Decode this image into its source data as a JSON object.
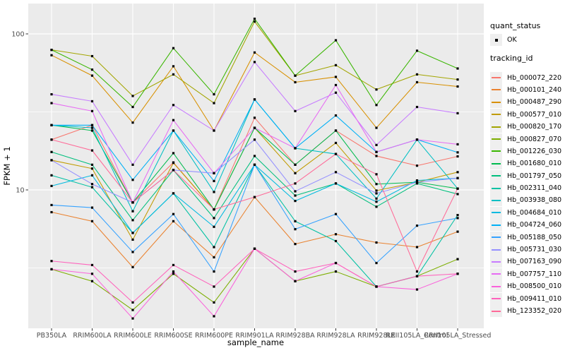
{
  "figure": {
    "background": "#FFFFFF",
    "panel_bg": "#EBEBEB",
    "grid_color": "#FFFFFF",
    "tick_color": "#333333",
    "tick_label_color": "#4D4D4D",
    "point_color": "#000000"
  },
  "legend": {
    "quant_status": {
      "title": "quant_status",
      "items": [
        {
          "label": "OK",
          "symbol": "black-point"
        }
      ]
    },
    "tracking_id": {
      "title": "tracking_id"
    }
  },
  "chart_data": {
    "type": "line",
    "title": "",
    "xlabel": "sample_name",
    "ylabel": "FPKM + 1",
    "y_scale": "log10",
    "y_ticks": [
      100,
      10
    ],
    "y_minor_gridlines": [
      31.62,
      3.162
    ],
    "ylim": [
      1.35,
      160
    ],
    "grid": true,
    "legend_position": "right",
    "marker": "small black point (quant_status = OK)",
    "categories": [
      "PB350LA",
      "RRIM600LA",
      "RRIM600LE",
      "RRIM600SE",
      "RRIM600PE",
      "RRIM901LA",
      "RRIM928BA",
      "RRIM928LA",
      "RRIM928LE",
      "RRII105LA_Control",
      "RRII105LA_Stressed"
    ],
    "series": [
      {
        "name": "Hb_000072_220",
        "color": "#F8766D",
        "values": [
          21,
          26,
          8.3,
          15,
          7.5,
          29,
          14.5,
          24,
          16.5,
          14.3,
          16.4
        ]
      },
      {
        "name": "Hb_000101_240",
        "color": "#EA8331",
        "values": [
          7.2,
          6.3,
          3.2,
          6.3,
          3.7,
          9.0,
          4.5,
          5.2,
          4.6,
          4.3,
          5.4
        ]
      },
      {
        "name": "Hb_000487_290",
        "color": "#D89000",
        "values": [
          73,
          54,
          27,
          62,
          24,
          76,
          49,
          53,
          25,
          49,
          46
        ]
      },
      {
        "name": "Hb_000577_010",
        "color": "#C09B00",
        "values": [
          15.5,
          13.7,
          4.8,
          14.9,
          7.5,
          25,
          12.8,
          20,
          9.9,
          11.2,
          13
        ]
      },
      {
        "name": "Hb_000820_170",
        "color": "#A3A500",
        "values": [
          79,
          72,
          40,
          55,
          36,
          120,
          54,
          63,
          44,
          55,
          51
        ]
      },
      {
        "name": "Hb_000827_070",
        "color": "#7CAE00",
        "values": [
          3.1,
          2.6,
          1.7,
          2.9,
          1.9,
          4.2,
          2.6,
          3.0,
          2.4,
          2.8,
          3.6
        ]
      },
      {
        "name": "Hb_001226_030",
        "color": "#39B600",
        "values": [
          79,
          59,
          34,
          81,
          41,
          125,
          54,
          91,
          35,
          78,
          60
        ]
      },
      {
        "name": "Hb_001680_010",
        "color": "#00BB4E",
        "values": [
          26,
          24,
          8.3,
          17.2,
          7.5,
          25,
          14.5,
          24,
          10.9,
          11.2,
          10.2
        ]
      },
      {
        "name": "Hb_001797_050",
        "color": "#00BF7D",
        "values": [
          17.5,
          14.5,
          6.4,
          13.4,
          6.6,
          16.5,
          9.2,
          11,
          7.8,
          11,
          9.4
        ]
      },
      {
        "name": "Hb_002311_040",
        "color": "#00C1A3",
        "values": [
          12.4,
          10.4,
          5.3,
          9.5,
          4.3,
          14.5,
          6.3,
          4.7,
          2.4,
          2.8,
          6.9
        ]
      },
      {
        "name": "Hb_003938_080",
        "color": "#00BFC4",
        "values": [
          26,
          25,
          7.3,
          24,
          9.7,
          38,
          18.5,
          17,
          8.8,
          21,
          10.2
        ]
      },
      {
        "name": "Hb_004684_010",
        "color": "#00BAE0",
        "values": [
          10.6,
          12.4,
          5.3,
          9.5,
          5.8,
          14.5,
          8.5,
          11,
          8.4,
          11.5,
          11.9
        ]
      },
      {
        "name": "Hb_004724_060",
        "color": "#00B0F6",
        "values": [
          26,
          26,
          11.6,
          24,
          11.4,
          38,
          18.5,
          30,
          17.5,
          21,
          17.4
        ]
      },
      {
        "name": "Hb_005188_050",
        "color": "#35A2FF",
        "values": [
          8.0,
          7.7,
          4.0,
          7.0,
          3.0,
          14.5,
          5.6,
          7.0,
          3.4,
          5.9,
          6.6
        ]
      },
      {
        "name": "Hb_005731_030",
        "color": "#9590FF",
        "values": [
          15.5,
          10.9,
          8.3,
          13.4,
          12.8,
          21,
          9.8,
          13,
          9.5,
          11.2,
          11.9
        ]
      },
      {
        "name": "Hb_007163_090",
        "color": "#C77CFF",
        "values": [
          41,
          37,
          14.5,
          35,
          24,
          66,
          32,
          42,
          19.4,
          34,
          31
        ]
      },
      {
        "name": "Hb_007757_110",
        "color": "#E76BF3",
        "values": [
          36,
          32,
          8.3,
          28,
          12.8,
          25,
          18.5,
          47,
          17.5,
          21,
          19.6
        ]
      },
      {
        "name": "Hb_008500_010",
        "color": "#FA62DB",
        "values": [
          3.1,
          2.9,
          1.5,
          3.0,
          1.55,
          4.2,
          2.6,
          3.4,
          2.4,
          2.3,
          2.9
        ]
      },
      {
        "name": "Hb_009411_010",
        "color": "#FF62BC",
        "values": [
          3.5,
          3.3,
          1.9,
          3.3,
          2.4,
          4.2,
          3.0,
          3.4,
          2.4,
          2.8,
          2.9
        ]
      },
      {
        "name": "Hb_123352_020",
        "color": "#FF6A98",
        "values": [
          21,
          17.9,
          8.3,
          13.4,
          7.5,
          9.0,
          11,
          17,
          12.6,
          3.0,
          10.2
        ]
      }
    ]
  }
}
